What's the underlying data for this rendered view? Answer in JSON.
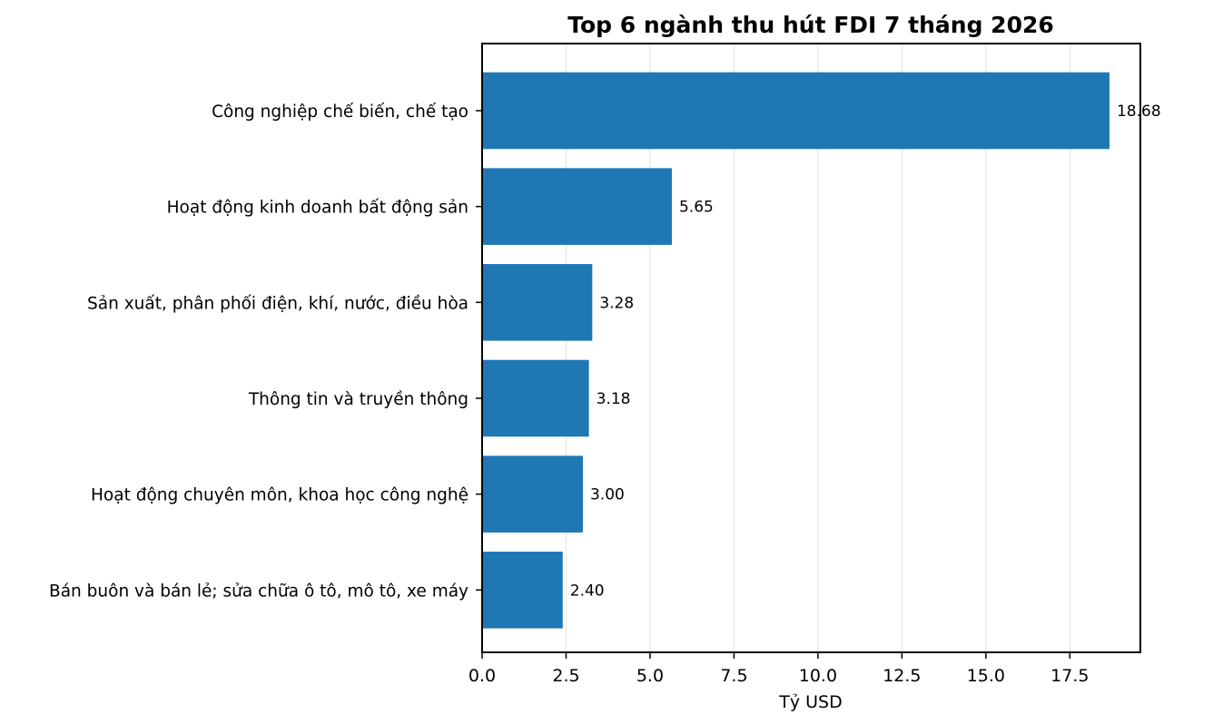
{
  "chart_data": {
    "type": "bar",
    "orientation": "horizontal",
    "title": "Top 6 ngành thu hút FDI 7 tháng 2026",
    "xlabel": "Tỷ USD",
    "ylabel": "",
    "xlim": [
      0,
      19.6
    ],
    "xticks": [
      0,
      2.5,
      5,
      7.5,
      10,
      12.5,
      15,
      17.5
    ],
    "xtick_labels": [
      "0.0",
      "2.5",
      "5.0",
      "7.5",
      "10.0",
      "12.5",
      "15.0",
      "17.5"
    ],
    "grid": "x-only",
    "bar_color": "#1f77b4",
    "categories": [
      "Công nghiệp chế biến, chế tạo",
      "Hoạt động kinh doanh bất động sản",
      "Sản xuất, phân phối điện, khí, nước, điều hòa",
      "Thông tin và truyền thông",
      "Hoạt động chuyên môn, khoa học công nghệ",
      "Bán buôn và bán lẻ; sửa chữa ô tô, mô tô, xe máy"
    ],
    "values": [
      18.68,
      5.65,
      3.28,
      3.18,
      3.0,
      2.4
    ],
    "value_labels": [
      "18.68",
      "5.65",
      "3.28",
      "3.18",
      "3.00",
      "2.40"
    ]
  }
}
